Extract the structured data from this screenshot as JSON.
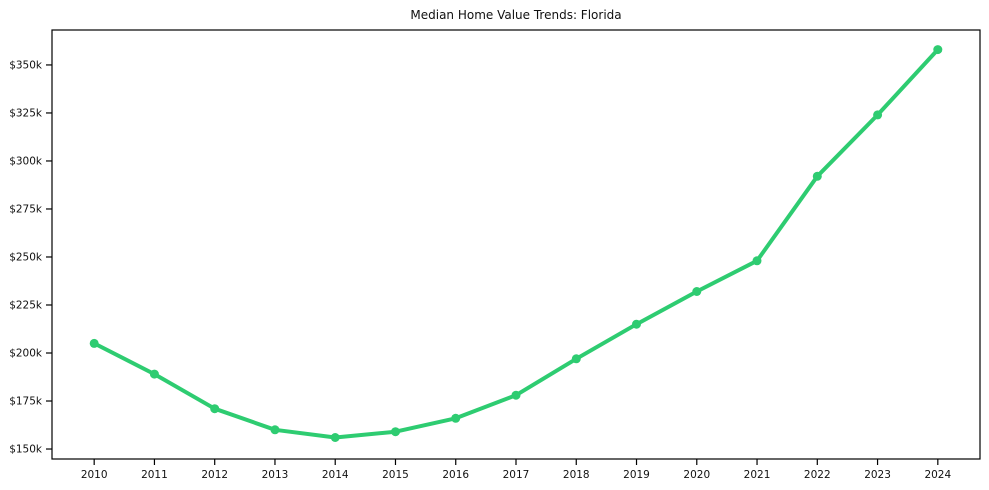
{
  "chart_data": {
    "type": "line",
    "title": "Median Home Value Trends: Florida",
    "x": [
      2010,
      2011,
      2012,
      2013,
      2014,
      2015,
      2016,
      2017,
      2018,
      2019,
      2020,
      2021,
      2022,
      2023,
      2024
    ],
    "values": [
      205,
      189,
      171,
      160,
      156,
      159,
      166,
      178,
      197,
      215,
      232,
      248,
      292,
      324,
      358
    ],
    "value_unit": "thousands of dollars",
    "x_tick_labels": [
      "2010",
      "2011",
      "2012",
      "2013",
      "2014",
      "2015",
      "2016",
      "2017",
      "2018",
      "2019",
      "2020",
      "2021",
      "2022",
      "2023",
      "2024"
    ],
    "y_tick_values": [
      150,
      175,
      200,
      225,
      250,
      275,
      300,
      325,
      350
    ],
    "y_tick_labels": [
      "$150k",
      "$175k",
      "$200k",
      "$225k",
      "$250k",
      "$275k",
      "$300k",
      "$325k",
      "$350k"
    ],
    "xlim": [
      2009.3,
      2024.7
    ],
    "ylim": [
      144.8,
      368.2
    ],
    "grid": false,
    "legend": "none",
    "line_color": "#2ecc71",
    "marker_color": "#2ecc71",
    "axis_color": "#000000",
    "text_color": "#111111",
    "background_color": "#ffffff"
  }
}
